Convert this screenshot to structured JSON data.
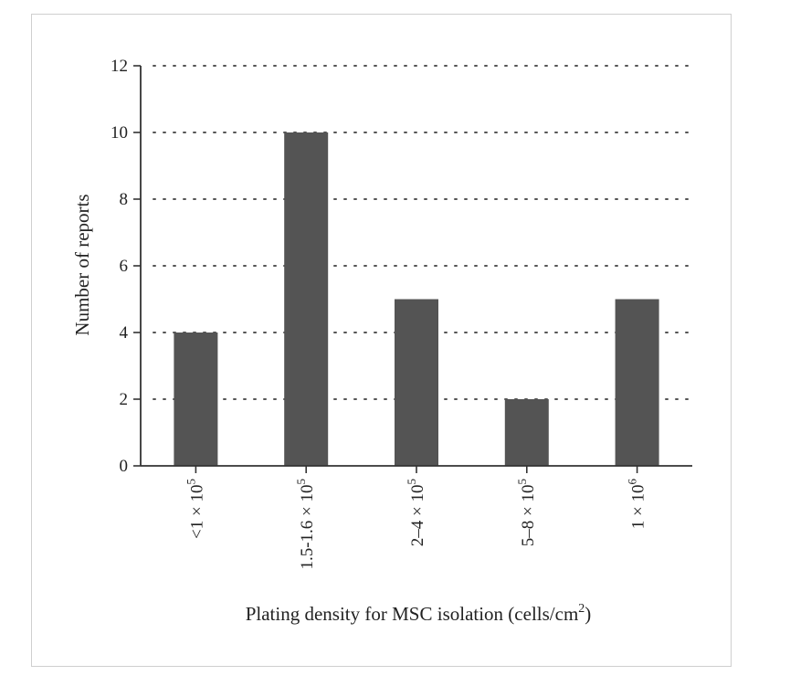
{
  "chart_data": {
    "type": "bar",
    "categories": [
      {
        "base": "<1 × 10",
        "exp": "5"
      },
      {
        "base": "1.5-1.6 × 10",
        "exp": "5"
      },
      {
        "base": "2–4 × 10",
        "exp": "5"
      },
      {
        "base": "5–8 × 10",
        "exp": "5"
      },
      {
        "base": "1 × 10",
        "exp": "6"
      }
    ],
    "values": [
      4,
      10,
      5,
      2,
      5
    ],
    "ylabel": "Number of reports",
    "xlabel": {
      "text": "Plating density for MSC isolation (cells/cm",
      "sup": "2",
      "close": ")"
    },
    "ylim": [
      0,
      12
    ],
    "yticks": [
      "0",
      "2",
      "4",
      "6",
      "8",
      "10",
      "12"
    ],
    "grid": "horizontal dotted",
    "bar_color": "#545454",
    "axis_color": "#333333"
  }
}
